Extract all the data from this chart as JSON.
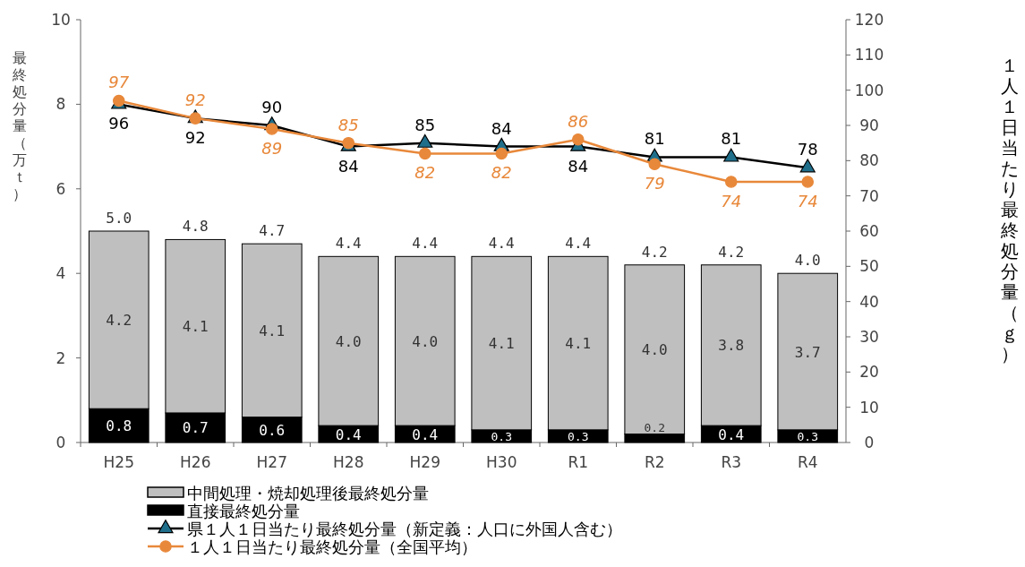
{
  "chart_data": {
    "type": "bar",
    "stacked": true,
    "ylabel": "最終処分量（万ｔ）",
    "y2label": "１人１日当たり最終処分量（ｇ）",
    "categories": [
      "H25",
      "H26",
      "H27",
      "H28",
      "H29",
      "H30",
      "R1",
      "R2",
      "R3",
      "R4"
    ],
    "ylim": [
      0,
      10
    ],
    "yticks": [
      0,
      2,
      4,
      6,
      8,
      10
    ],
    "y2lim": [
      0,
      120
    ],
    "y2ticks": [
      0,
      10,
      20,
      30,
      40,
      50,
      60,
      70,
      80,
      90,
      100,
      110,
      120
    ],
    "series": [
      {
        "type": "bar",
        "name": "直接最終処分量",
        "color": "#000000",
        "values": [
          0.8,
          0.7,
          0.6,
          0.4,
          0.4,
          0.3,
          0.3,
          0.2,
          0.4,
          0.3
        ],
        "value_labels": [
          "0.8",
          "0.7",
          "0.6",
          "0.4",
          "0.4",
          "0.3",
          "0.3",
          "0.2",
          "0.4",
          "0.3"
        ]
      },
      {
        "type": "bar",
        "name": "中間処理・焼却処理後最終処分量",
        "color": "#bfbfbf",
        "values": [
          4.2,
          4.1,
          4.1,
          4.0,
          4.0,
          4.1,
          4.1,
          4.0,
          3.8,
          3.7
        ],
        "value_labels": [
          "4.2",
          "4.1",
          "4.1",
          "4.0",
          "4.0",
          "4.1",
          "4.1",
          "4.0",
          "3.8",
          "3.7"
        ]
      },
      {
        "type": "line",
        "axis": "y2",
        "marker": "triangle",
        "name": "県１人１日当たり最終処分量（新定義：人口に外国人含む）",
        "color": "#000000",
        "values": [
          96,
          92,
          90,
          84,
          85,
          84,
          84,
          81,
          81,
          78
        ]
      },
      {
        "type": "line",
        "axis": "y2",
        "marker": "circle",
        "name": "１人１日当たり最終処分量（全国平均）",
        "color": "#e8883a",
        "values": [
          97,
          92,
          89,
          85,
          82,
          82,
          86,
          79,
          74,
          74
        ]
      }
    ],
    "totals": [
      "5.0",
      "4.8",
      "4.7",
      "4.4",
      "4.4",
      "4.4",
      "4.4",
      "4.2",
      "4.2",
      "4.0"
    ],
    "data_labels": true,
    "legend": "bottom",
    "grid": false
  }
}
